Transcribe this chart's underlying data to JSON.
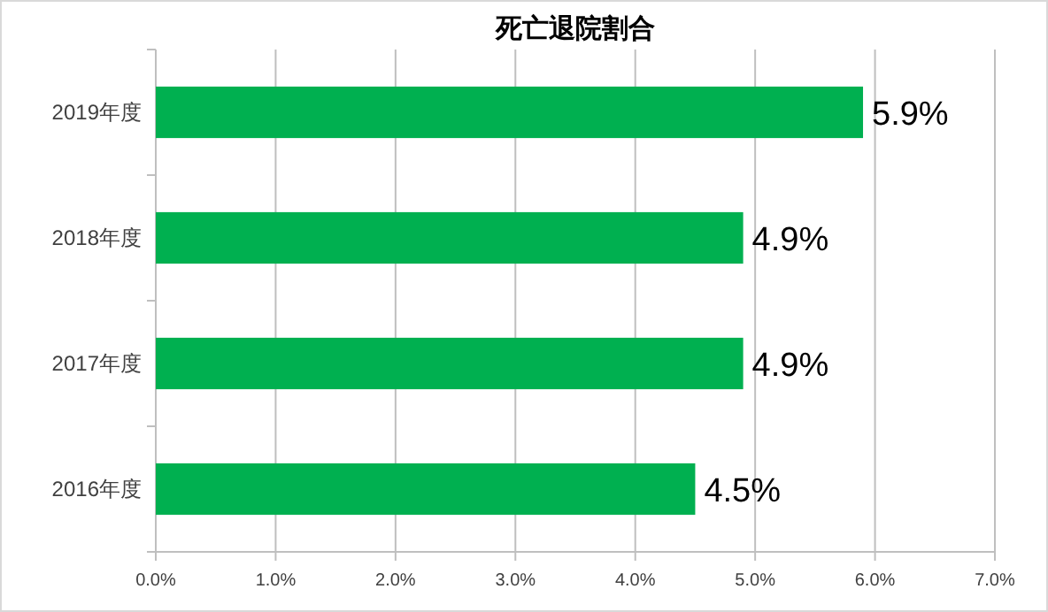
{
  "chart_data": {
    "type": "bar",
    "title": "死亡退院割合",
    "orientation": "horizontal",
    "categories": [
      "2019年度",
      "2018年度",
      "2017年度",
      "2016年度"
    ],
    "values": [
      5.9,
      4.9,
      4.9,
      4.5
    ],
    "value_labels": [
      "5.9%",
      "4.9%",
      "4.9%",
      "4.5%"
    ],
    "color": "#00b050",
    "xlim": [
      0,
      7
    ],
    "xticks": [
      {
        "value": 0,
        "label": "0.0%"
      },
      {
        "value": 1,
        "label": "1.0%"
      },
      {
        "value": 2,
        "label": "2.0%"
      },
      {
        "value": 3,
        "label": "3.0%"
      },
      {
        "value": 4,
        "label": "4.0%"
      },
      {
        "value": 5,
        "label": "5.0%"
      },
      {
        "value": 6,
        "label": "6.0%"
      },
      {
        "value": 7,
        "label": "7.0%"
      }
    ],
    "grid": "x"
  }
}
